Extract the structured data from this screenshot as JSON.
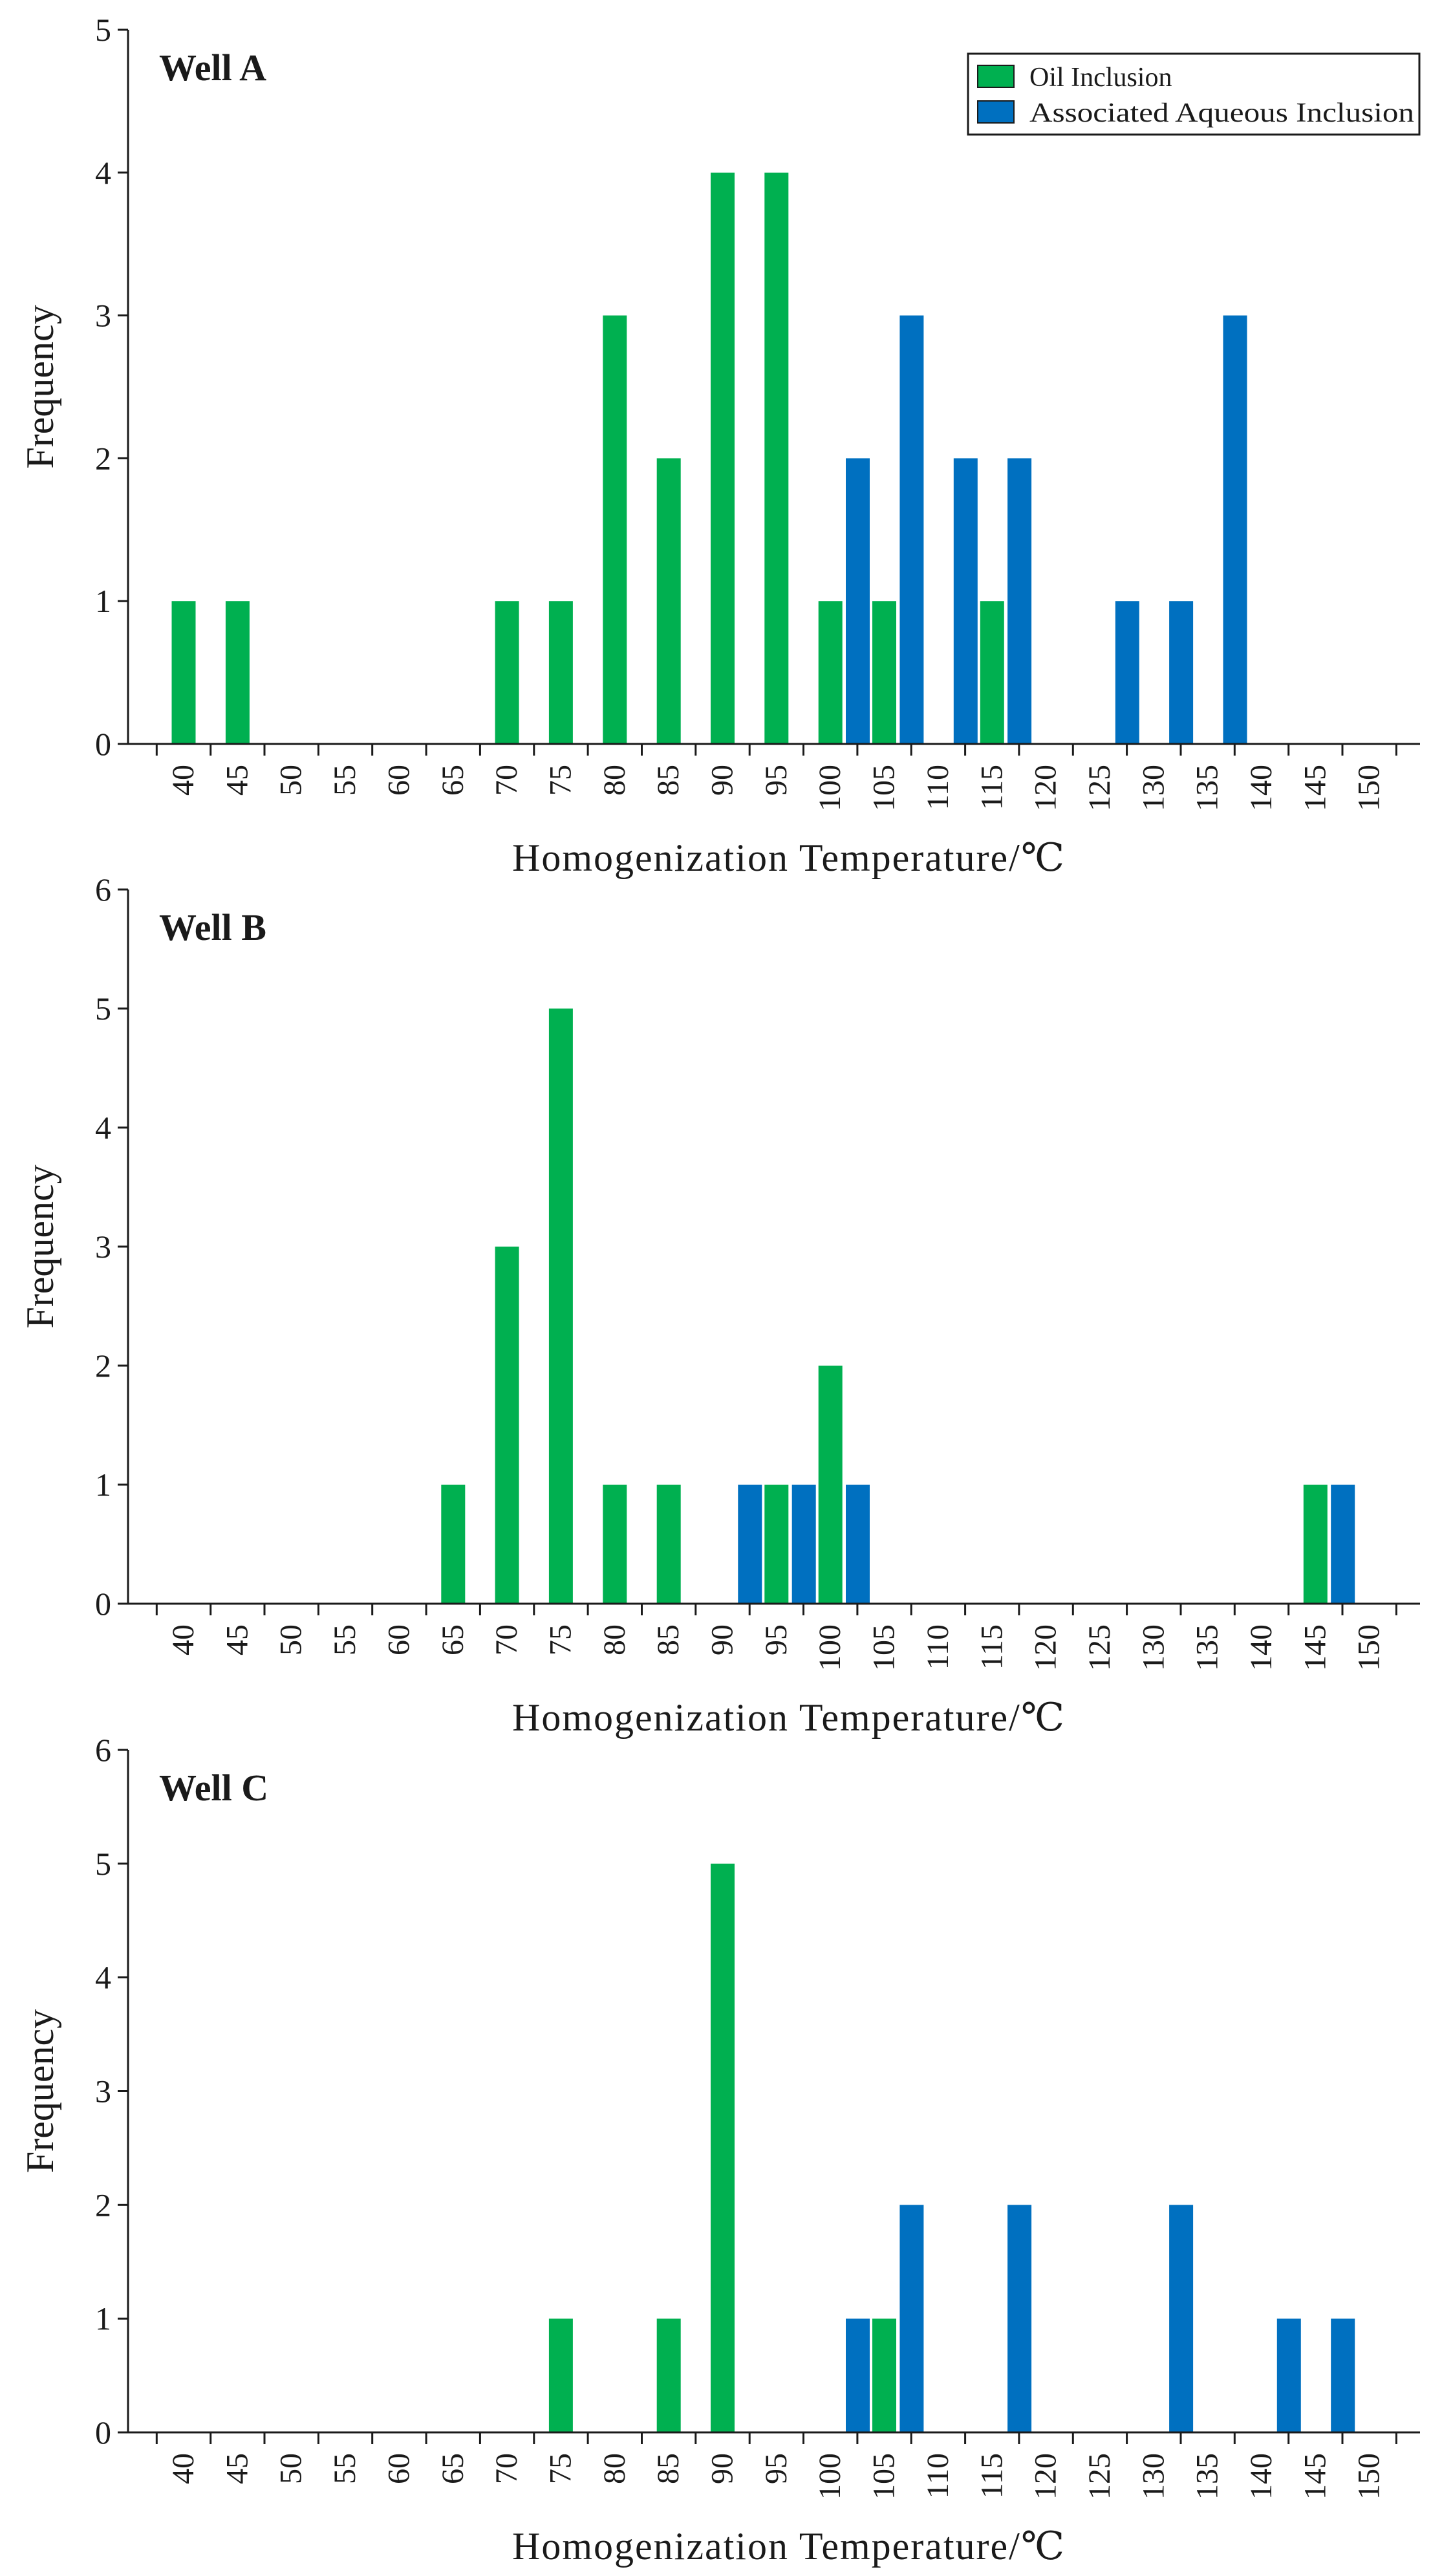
{
  "legend": {
    "oil_label": "Oil Inclusion",
    "aqueous_label": "Associated Aqueous Inclusion"
  },
  "colors": {
    "oil": "#00b050",
    "aqueous": "#0070c0",
    "axis": "#1a1a1a"
  },
  "chart_data": [
    {
      "type": "bar",
      "title": "Well A",
      "xlabel": "Homogenization Temperature/℃",
      "ylabel": "Frequency",
      "ylim": [
        0,
        5
      ],
      "yticks": [
        "0",
        "1",
        "2",
        "3",
        "4",
        "5"
      ],
      "categories": [
        "40",
        "45",
        "50",
        "55",
        "60",
        "65",
        "70",
        "75",
        "80",
        "85",
        "90",
        "95",
        "100",
        "105",
        "110",
        "115",
        "120",
        "125",
        "130",
        "135",
        "140",
        "145",
        "150"
      ],
      "series": [
        {
          "name": "Oil Inclusion",
          "key": "oil",
          "values": [
            1,
            1,
            0,
            0,
            0,
            0,
            1,
            1,
            3,
            2,
            4,
            4,
            1,
            1,
            0,
            1,
            0,
            0,
            0,
            0,
            0,
            0,
            0
          ]
        },
        {
          "name": "Associated Aqueous Inclusion",
          "key": "aqueous",
          "values": [
            0,
            0,
            0,
            0,
            0,
            0,
            0,
            0,
            0,
            0,
            0,
            0,
            0,
            2,
            3,
            2,
            2,
            0,
            1,
            1,
            3,
            0,
            0
          ]
        }
      ],
      "legend_position": "top-right"
    },
    {
      "type": "bar",
      "title": "Well B",
      "xlabel": "Homogenization Temperature/℃",
      "ylabel": "Frequency",
      "ylim": [
        0,
        6
      ],
      "yticks": [
        "0",
        "1",
        "2",
        "3",
        "4",
        "5",
        "6"
      ],
      "categories": [
        "40",
        "45",
        "50",
        "55",
        "60",
        "65",
        "70",
        "75",
        "80",
        "85",
        "90",
        "95",
        "100",
        "105",
        "110",
        "115",
        "120",
        "125",
        "130",
        "135",
        "140",
        "145",
        "150"
      ],
      "series": [
        {
          "name": "Oil Inclusion",
          "key": "oil",
          "values": [
            0,
            0,
            0,
            0,
            0,
            1,
            3,
            5,
            1,
            1,
            0,
            1,
            2,
            0,
            0,
            0,
            0,
            0,
            0,
            0,
            0,
            1,
            0
          ]
        },
        {
          "name": "Associated Aqueous Inclusion",
          "key": "aqueous",
          "values": [
            0,
            0,
            0,
            0,
            0,
            0,
            0,
            0,
            0,
            0,
            0,
            1,
            1,
            1,
            0,
            0,
            0,
            0,
            0,
            0,
            0,
            0,
            1
          ]
        }
      ]
    },
    {
      "type": "bar",
      "title": "Well C",
      "xlabel": "Homogenization Temperature/℃",
      "ylabel": "Frequency",
      "ylim": [
        0,
        6
      ],
      "yticks": [
        "0",
        "1",
        "2",
        "3",
        "4",
        "5",
        "6"
      ],
      "categories": [
        "40",
        "45",
        "50",
        "55",
        "60",
        "65",
        "70",
        "75",
        "80",
        "85",
        "90",
        "95",
        "100",
        "105",
        "110",
        "115",
        "120",
        "125",
        "130",
        "135",
        "140",
        "145",
        "150"
      ],
      "series": [
        {
          "name": "Oil Inclusion",
          "key": "oil",
          "values": [
            0,
            0,
            0,
            0,
            0,
            0,
            0,
            1,
            0,
            1,
            5,
            0,
            0,
            1,
            0,
            0,
            0,
            0,
            0,
            0,
            0,
            0,
            0
          ]
        },
        {
          "name": "Associated Aqueous Inclusion",
          "key": "aqueous",
          "values": [
            0,
            0,
            0,
            0,
            0,
            0,
            0,
            0,
            0,
            0,
            0,
            0,
            0,
            1,
            2,
            0,
            2,
            0,
            0,
            2,
            0,
            1,
            1
          ]
        }
      ]
    }
  ]
}
